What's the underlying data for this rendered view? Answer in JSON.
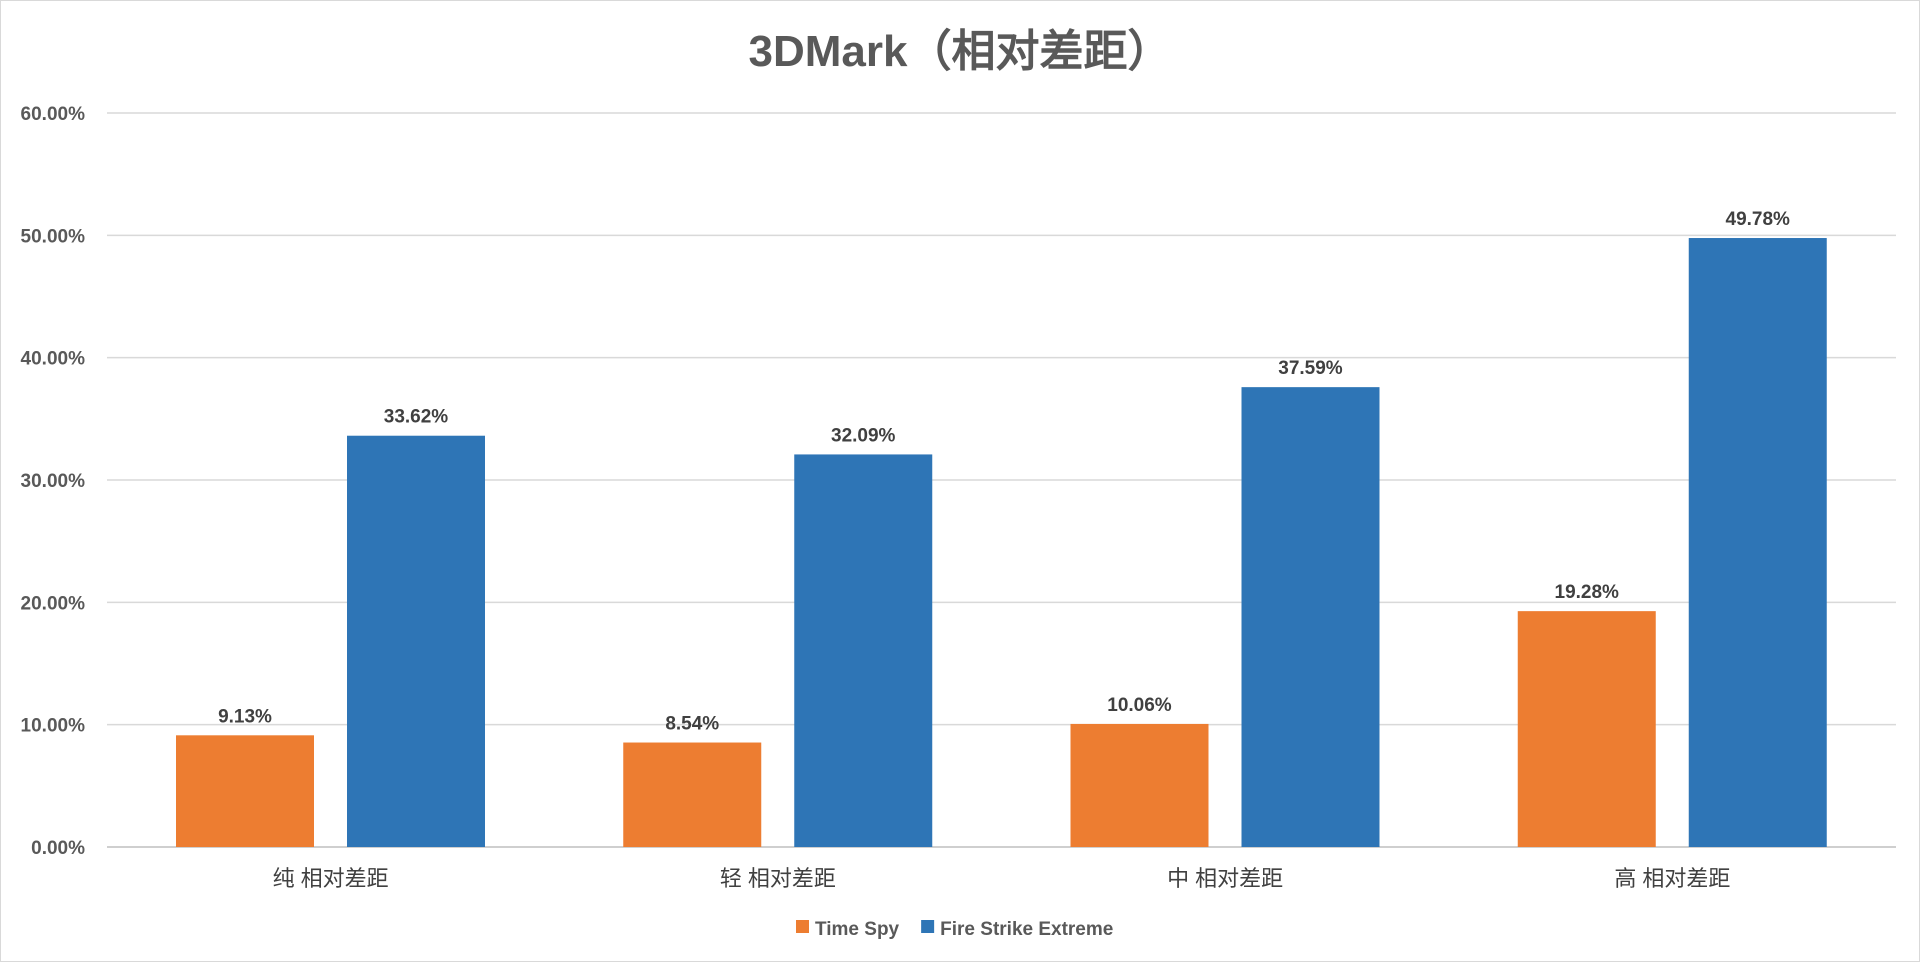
{
  "chart_data": {
    "type": "bar",
    "title": "3DMark（相对差距）",
    "categories": [
      "纯 相对差距",
      "轻 相对差距",
      "中 相对差距",
      "高 相对差距"
    ],
    "series": [
      {
        "name": "Time Spy",
        "color": "#ED7D31",
        "values": [
          9.13,
          8.54,
          10.06,
          19.28
        ],
        "labels": [
          "9.13%",
          "8.54%",
          "10.06%",
          "19.28%"
        ]
      },
      {
        "name": "Fire Strike Extreme",
        "color": "#2E75B6",
        "values": [
          33.62,
          32.09,
          37.59,
          49.78
        ],
        "labels": [
          "33.62%",
          "32.09%",
          "37.59%",
          "49.78%"
        ]
      }
    ],
    "ylim": [
      0,
      60
    ],
    "yticks": [
      "0.00%",
      "10.00%",
      "20.00%",
      "30.00%",
      "40.00%",
      "50.00%",
      "60.00%"
    ],
    "xlabel": "",
    "ylabel": "",
    "grid": true,
    "legend": "bottom"
  }
}
